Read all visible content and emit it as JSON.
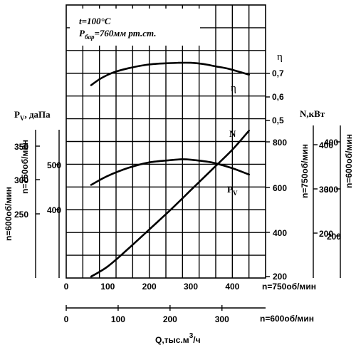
{
  "chart_data": {
    "type": "line",
    "annotations": {
      "temperature_prefix": "t=100",
      "temperature_unit": "°C",
      "pressure_symbol": "P",
      "pressure_subscript": "бар",
      "pressure_value": "=760мм рт.ст."
    },
    "x_axes": [
      {
        "label": "n=750об/мин",
        "ticks": [
          "0",
          "100",
          "200",
          "300",
          "400"
        ],
        "range": [
          0,
          480
        ]
      },
      {
        "label": "n=600об/мин",
        "ticks": [
          "0",
          "100",
          "200",
          "300"
        ],
        "range": [
          0,
          384
        ]
      }
    ],
    "xlabel": "Q,тыс.м",
    "xlabel_sup": "3",
    "xlabel_tail": "/ч",
    "pressure_axes": {
      "title_main": "P",
      "title_sub": "V",
      "title_unit": ", даПа",
      "axis_600_label": "n=600об/мин",
      "axis_750_label": "n=750об/мин",
      "ticks_600": [
        "350",
        "300",
        "250"
      ],
      "ticks_750": [
        "500",
        "400"
      ]
    },
    "efficiency_axis": {
      "title": "η",
      "ticks": [
        "0,7",
        "0,6",
        "0,5"
      ]
    },
    "power_axes": {
      "title": "N,кВт",
      "axis_750_label": "n=750об/мин",
      "axis_600_label": "n=600об/мин",
      "ticks_inner": [
        "800",
        "600",
        "400",
        "200"
      ],
      "ticks_750": [
        "400",
        "300",
        "200"
      ],
      "ticks_600": [
        "400",
        "300",
        "200"
      ]
    },
    "series": [
      {
        "name": "η",
        "x": [
          60,
          80,
          100,
          120,
          150,
          180,
          210,
          240,
          270,
          300,
          330,
          360,
          390,
          420,
          440
        ],
        "y": [
          0.65,
          0.675,
          0.694,
          0.708,
          0.722,
          0.733,
          0.74,
          0.743,
          0.745,
          0.745,
          0.74,
          0.73,
          0.72,
          0.705,
          0.695
        ]
      },
      {
        "name": "N",
        "x": [
          60,
          100,
          150,
          200,
          250,
          300,
          350,
          400,
          440
        ],
        "y": [
          200,
          245,
          325,
          410,
          495,
          585,
          675,
          765,
          850
        ]
      },
      {
        "name": "P",
        "subscript": "V",
        "x": [
          60,
          100,
          150,
          200,
          250,
          280,
          300,
          350,
          400,
          440
        ],
        "y": [
          455,
          475,
          493,
          505,
          510,
          512,
          511,
          505,
          492,
          478
        ]
      }
    ]
  }
}
